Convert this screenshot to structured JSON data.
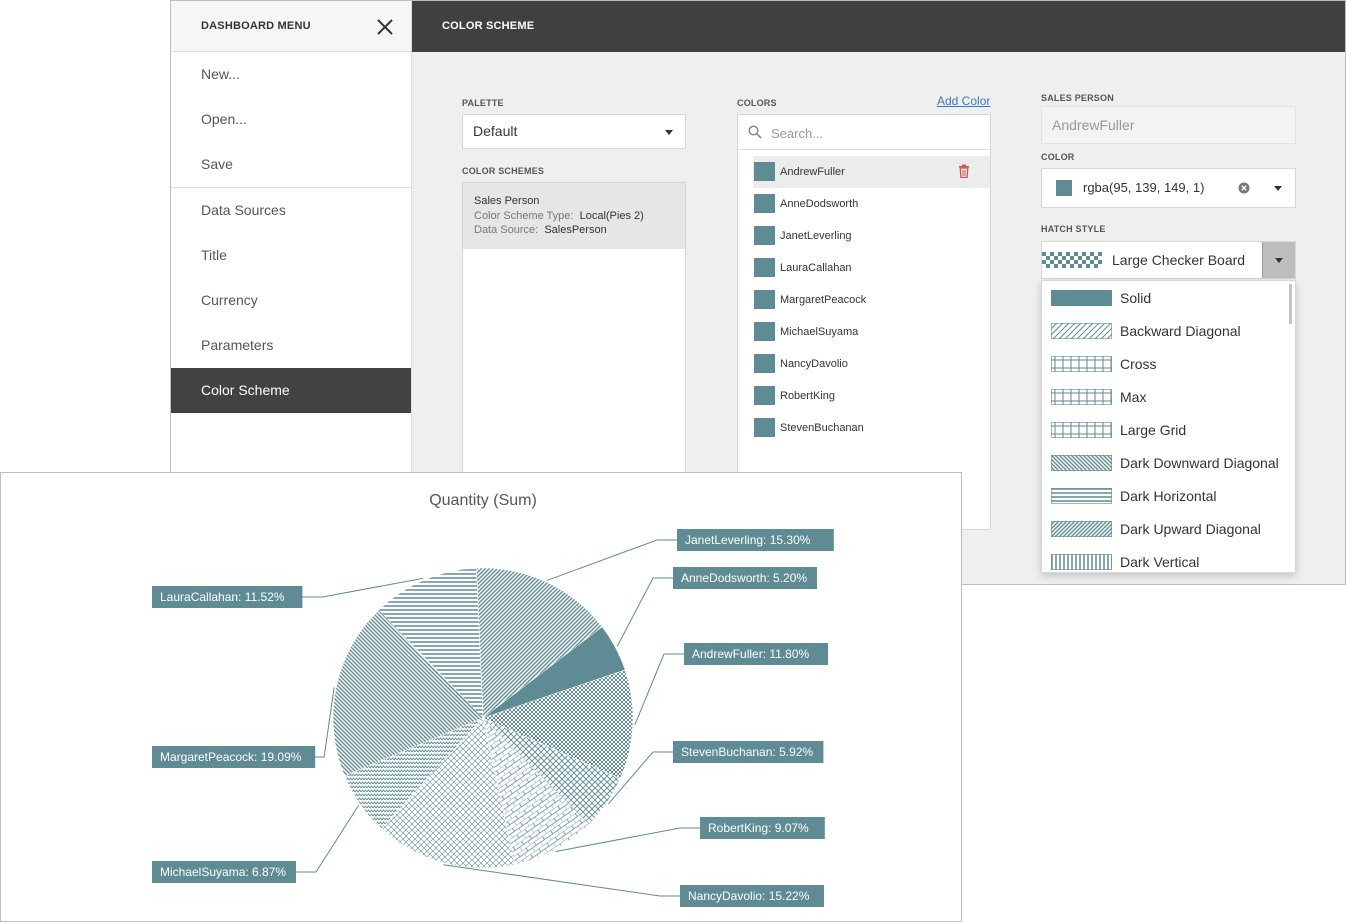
{
  "menu": {
    "title": "DASHBOARD MENU",
    "items": [
      {
        "label": "New..."
      },
      {
        "label": "Open..."
      },
      {
        "label": "Save"
      },
      {
        "label": "Data Sources"
      },
      {
        "label": "Title"
      },
      {
        "label": "Currency"
      },
      {
        "label": "Parameters"
      },
      {
        "label": "Color Scheme"
      }
    ],
    "active": "Color Scheme"
  },
  "content": {
    "title": "COLOR SCHEME",
    "palette": {
      "label": "PALETTE",
      "value": "Default"
    },
    "color_schemes": {
      "label": "COLOR SCHEMES",
      "items": [
        {
          "name": "Sales Person",
          "type_label": "Color Scheme Type:",
          "type_value": "Local(Pies 2)",
          "source_label": "Data Source:",
          "source_value": "SalesPerson"
        }
      ]
    },
    "colors": {
      "label": "COLORS",
      "add_label": "Add Color",
      "search_placeholder": "Search...",
      "swatch_color": "#5f8b95",
      "items": [
        "AndrewFuller",
        "AnneDodsworth",
        "JanetLeverling",
        "LauraCallahan",
        "MargaretPeacock",
        "MichaelSuyama",
        "NancyDavolio",
        "RobertKing",
        "StevenBuchanan"
      ],
      "selected": "AndrewFuller"
    },
    "sales_person": {
      "label": "SALES PERSON",
      "value": "AndrewFuller"
    },
    "color": {
      "label": "COLOR",
      "value": "rgba(95, 139, 149, 1)"
    },
    "hatch_style": {
      "label": "HATCH STYLE",
      "value": "Large Checker Board",
      "options": [
        "Solid",
        "Backward Diagonal",
        "Cross",
        "Max",
        "Large Grid",
        "Dark Downward Diagonal",
        "Dark Horizontal",
        "Dark Upward Diagonal",
        "Dark Vertical"
      ]
    }
  },
  "chart_data": {
    "type": "pie",
    "title": "Quantity (Sum)",
    "color": "#5f8b95",
    "slices": [
      {
        "name": "JanetLeverling",
        "value": 15.3,
        "label": "JanetLeverling: 15.30%"
      },
      {
        "name": "AnneDodsworth",
        "value": 5.2,
        "label": "AnneDodsworth: 5.20%"
      },
      {
        "name": "AndrewFuller",
        "value": 11.8,
        "label": "AndrewFuller: 11.80%"
      },
      {
        "name": "StevenBuchanan",
        "value": 5.92,
        "label": "StevenBuchanan: 5.92%"
      },
      {
        "name": "RobertKing",
        "value": 9.07,
        "label": "RobertKing: 9.07%"
      },
      {
        "name": "NancyDavolio",
        "value": 15.22,
        "label": "NancyDavolio: 15.22%"
      },
      {
        "name": "MichaelSuyama",
        "value": 6.87,
        "label": "MichaelSuyama: 6.87%"
      },
      {
        "name": "MargaretPeacock",
        "value": 19.09,
        "label": "MargaretPeacock: 19.09%"
      },
      {
        "name": "LauraCallahan",
        "value": 11.52,
        "label": "LauraCallahan: 11.52%"
      }
    ]
  }
}
